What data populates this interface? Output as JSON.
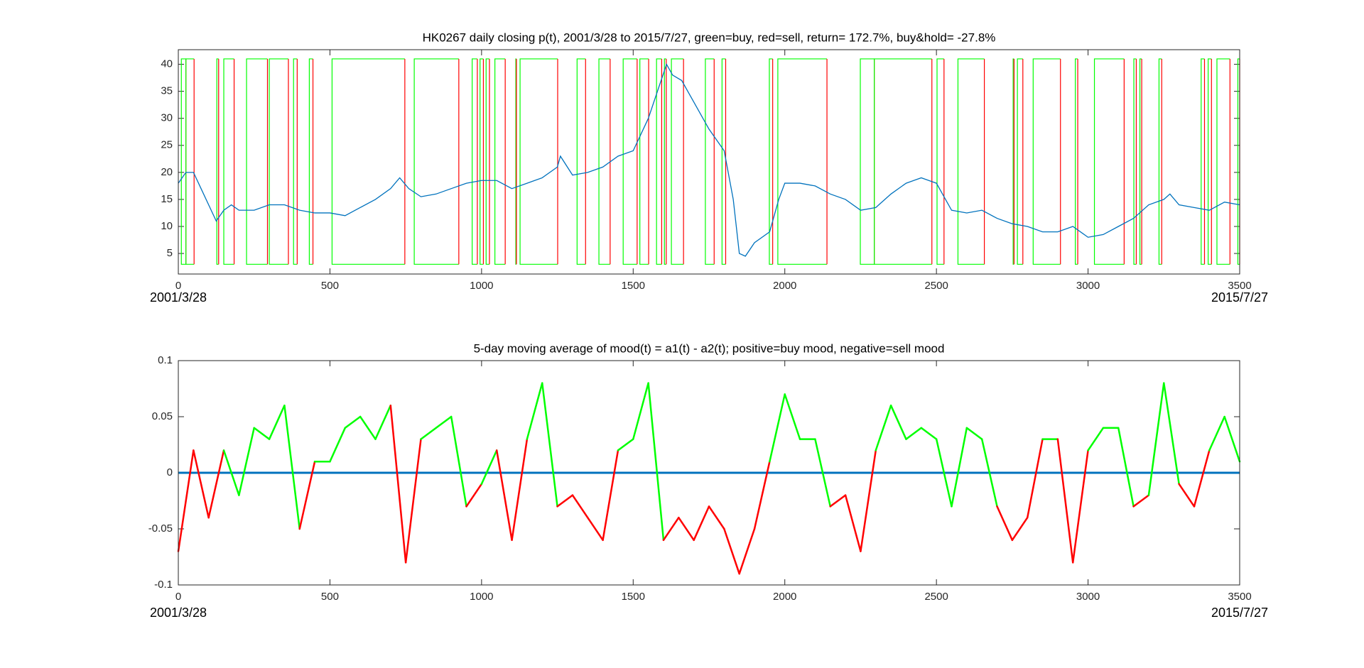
{
  "chart_data": [
    {
      "type": "line",
      "title": "HK0267 daily closing p(t), 2001/3/28 to 2015/7/27, green=buy, red=sell, return= 172.7%, buy&hold= -27.8%",
      "start_label": "2001/3/28",
      "end_label": "2015/7/27",
      "xlim": [
        0,
        3500
      ],
      "xticks": [
        0,
        500,
        1000,
        1500,
        2000,
        2500,
        3000,
        3500
      ],
      "ylim": [
        1.2,
        42.7
      ],
      "yticks": [
        5,
        10,
        15,
        20,
        25,
        30,
        35,
        40
      ],
      "color": "#0072bd",
      "x": [
        0,
        25,
        50,
        75,
        100,
        125,
        150,
        175,
        200,
        250,
        300,
        350,
        400,
        450,
        500,
        550,
        600,
        650,
        700,
        730,
        760,
        800,
        850,
        900,
        950,
        1000,
        1050,
        1100,
        1150,
        1200,
        1250,
        1260,
        1300,
        1350,
        1400,
        1450,
        1500,
        1550,
        1580,
        1610,
        1630,
        1660,
        1700,
        1750,
        1800,
        1830,
        1850,
        1870,
        1900,
        1950,
        1980,
        2000,
        2050,
        2100,
        2150,
        2200,
        2250,
        2300,
        2350,
        2400,
        2450,
        2500,
        2530,
        2550,
        2600,
        2650,
        2700,
        2750,
        2800,
        2850,
        2900,
        2950,
        3000,
        3050,
        3100,
        3150,
        3200,
        3250,
        3270,
        3300,
        3350,
        3400,
        3450,
        3500
      ],
      "values": [
        18,
        20,
        20,
        17,
        14,
        11,
        13,
        14,
        13,
        13,
        14,
        14,
        13,
        12.5,
        12.5,
        12,
        13.5,
        15,
        17,
        19,
        17,
        15.5,
        16,
        17,
        18,
        18.5,
        18.5,
        17,
        18,
        19,
        21,
        23,
        19.5,
        20,
        21,
        23,
        24,
        30,
        35,
        40,
        38,
        37,
        33,
        28,
        24,
        15,
        5,
        4.5,
        7,
        9,
        15,
        18,
        18,
        17.5,
        16,
        15,
        13,
        13.5,
        16,
        18,
        19,
        18,
        15,
        13,
        12.5,
        13,
        11.5,
        10.5,
        10,
        9,
        9,
        10,
        8,
        8.5,
        10,
        11.5,
        14,
        15,
        16,
        14,
        13.5,
        13,
        14.5,
        14
      ],
      "signals": {
        "buy_color": "#00ff00",
        "sell_color": "#ff0000",
        "range": [
          3,
          41
        ],
        "buy": [
          10,
          25,
          127,
          150,
          225,
          300,
          380,
          432,
          507,
          778,
          969,
          995,
          1015,
          1044,
          1113,
          1127,
          1315,
          1387,
          1467,
          1522,
          1577,
          1603,
          1626,
          1738,
          1793,
          1949,
          1977,
          2249,
          2295,
          2502,
          2571,
          2753,
          2767,
          2819,
          2958,
          3021,
          3151,
          3171,
          3234,
          3373,
          3396,
          3425,
          3494
        ],
        "sell": [
          25,
          52,
          133,
          184,
          294,
          363,
          392,
          444,
          747,
          925,
          986,
          1006,
          1026,
          1078,
          1115,
          1251,
          1343,
          1424,
          1513,
          1551,
          1594,
          1609,
          1666,
          1767,
          1805,
          1960,
          2139,
          2295,
          2485,
          2525,
          2658,
          2756,
          2785,
          2909,
          2966,
          3119,
          3159,
          3177,
          3243,
          3384,
          3407,
          3468,
          3500
        ]
      }
    },
    {
      "type": "line",
      "title": "5-day moving average of mood(t) = a1(t) - a2(t); positive=buy mood, negative=sell mood",
      "start_label": "2001/3/28",
      "end_label": "2015/7/27",
      "xlim": [
        0,
        3500
      ],
      "xticks": [
        0,
        500,
        1000,
        1500,
        2000,
        2500,
        3000,
        3500
      ],
      "ylim": [
        -0.1,
        0.1
      ],
      "yticks": [
        -0.1,
        -0.05,
        0,
        0.05,
        0.1
      ],
      "positive_color": "#00ff00",
      "negative_color": "#ff0000",
      "baseline": 0,
      "baseline_color": "#0072bd",
      "x": [
        0,
        50,
        100,
        150,
        200,
        250,
        300,
        350,
        400,
        450,
        500,
        550,
        600,
        650,
        700,
        750,
        800,
        850,
        900,
        950,
        1000,
        1050,
        1100,
        1150,
        1200,
        1250,
        1300,
        1350,
        1400,
        1450,
        1500,
        1550,
        1600,
        1650,
        1700,
        1750,
        1800,
        1850,
        1900,
        1950,
        2000,
        2050,
        2100,
        2150,
        2200,
        2250,
        2300,
        2350,
        2400,
        2450,
        2500,
        2550,
        2600,
        2650,
        2700,
        2750,
        2800,
        2850,
        2900,
        2950,
        3000,
        3050,
        3100,
        3150,
        3200,
        3250,
        3300,
        3350,
        3400,
        3450,
        3500
      ],
      "values": [
        -0.07,
        0.02,
        -0.04,
        0.02,
        -0.02,
        0.04,
        0.03,
        0.06,
        -0.05,
        0.01,
        0.01,
        0.04,
        0.05,
        0.03,
        0.06,
        -0.08,
        0.03,
        0.04,
        0.05,
        -0.03,
        -0.01,
        0.02,
        -0.06,
        0.03,
        0.08,
        -0.03,
        -0.02,
        -0.04,
        -0.06,
        0.02,
        0.03,
        0.08,
        -0.06,
        -0.04,
        -0.06,
        -0.03,
        -0.05,
        -0.09,
        -0.05,
        0.01,
        0.07,
        0.03,
        0.03,
        -0.03,
        -0.02,
        -0.07,
        0.02,
        0.06,
        0.03,
        0.04,
        0.03,
        -0.03,
        0.04,
        0.03,
        -0.03,
        -0.06,
        -0.04,
        0.03,
        0.03,
        -0.08,
        0.02,
        0.04,
        0.04,
        -0.03,
        -0.02,
        0.08,
        -0.01,
        -0.03,
        0.02,
        0.05,
        0.01
      ]
    }
  ]
}
